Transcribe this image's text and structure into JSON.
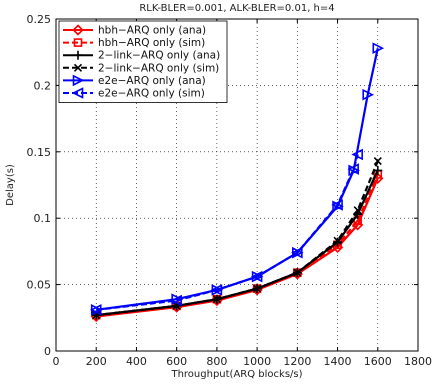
{
  "chart_data": {
    "type": "line",
    "title": "RLK-BLER=0.001, ALK-BLER=0.01, h=4",
    "xlabel": "Throughput(ARQ blocks/s)",
    "ylabel": "Delay(s)",
    "xlim": [
      0,
      1800
    ],
    "ylim": [
      0,
      0.25
    ],
    "xticks": [
      "0",
      "200",
      "400",
      "600",
      "800",
      "1000",
      "1200",
      "1400",
      "1600",
      "1800"
    ],
    "yticks": [
      "0",
      "0.05",
      "0.1",
      "0.15",
      "0.2",
      "0.25"
    ],
    "grid": true,
    "legend_position": "top-left",
    "series": [
      {
        "name": "hbh−ARQ only (ana)",
        "color": "#ff0000",
        "dash": "solid",
        "marker": "diamond",
        "x": [
          200,
          600,
          800,
          1000,
          1200,
          1400,
          1500,
          1600
        ],
        "y": [
          0.026,
          0.033,
          0.038,
          0.046,
          0.058,
          0.078,
          0.095,
          0.13
        ]
      },
      {
        "name": "hbh−ARQ only (sim)",
        "color": "#ff0000",
        "dash": "dashed",
        "marker": "square",
        "x": [
          200,
          600,
          800,
          1000,
          1200,
          1400,
          1500,
          1600
        ],
        "y": [
          0.027,
          0.034,
          0.039,
          0.047,
          0.059,
          0.08,
          0.098,
          0.133
        ]
      },
      {
        "name": "2−link−ARQ only (ana)",
        "color": "#000000",
        "dash": "solid",
        "marker": "plus",
        "x": [
          200,
          600,
          800,
          1000,
          1200,
          1400,
          1500,
          1600
        ],
        "y": [
          0.027,
          0.034,
          0.039,
          0.047,
          0.059,
          0.082,
          0.103,
          0.136
        ]
      },
      {
        "name": "2−link−ARQ only (sim)",
        "color": "#000000",
        "dash": "dashed",
        "marker": "x",
        "x": [
          200,
          600,
          800,
          1000,
          1200,
          1400,
          1500,
          1600
        ],
        "y": [
          0.027,
          0.034,
          0.039,
          0.047,
          0.059,
          0.083,
          0.106,
          0.143
        ]
      },
      {
        "name": "e2e−ARQ only (ana)",
        "color": "#0000ff",
        "dash": "solid",
        "marker": "triangle-right",
        "x": [
          200,
          600,
          800,
          1000,
          1200,
          1400,
          1480,
          1550,
          1600
        ],
        "y": [
          0.031,
          0.039,
          0.046,
          0.056,
          0.074,
          0.109,
          0.136,
          0.193,
          0.228
        ]
      },
      {
        "name": "e2e−ARQ only (sim)",
        "color": "#0000ff",
        "dash": "dashed",
        "marker": "triangle-left",
        "x": [
          200,
          600,
          800,
          1000,
          1200,
          1400,
          1480,
          1500
        ],
        "y": [
          0.031,
          0.038,
          0.046,
          0.056,
          0.074,
          0.11,
          0.137,
          0.148
        ]
      }
    ]
  }
}
